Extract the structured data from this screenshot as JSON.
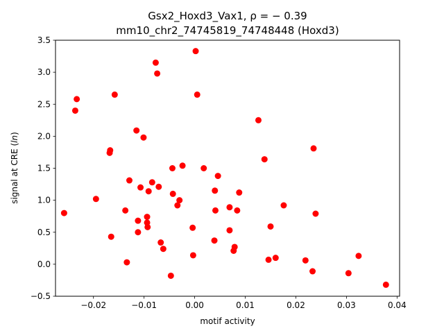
{
  "chart_data": {
    "type": "scatter",
    "title_line1": "Gsx2_Hoxd3_Vax1, ρ = − 0.39",
    "title_line2": "mm10_chr2_74745819_74748448 (Hoxd3)",
    "xlabel": "motif activity",
    "ylabel": "signal at CRE (ln)",
    "xlim": [
      -0.0275,
      0.0405
    ],
    "ylim": [
      -0.5,
      3.5
    ],
    "xticks": [
      -0.02,
      -0.01,
      0.0,
      0.01,
      0.02,
      0.03,
      0.04
    ],
    "xtick_labels": [
      "−0.02",
      "−0.01",
      "0.00",
      "0.01",
      "0.02",
      "0.03",
      "0.04"
    ],
    "yticks": [
      -0.5,
      0.0,
      0.5,
      1.0,
      1.5,
      2.0,
      2.5,
      3.0,
      3.5
    ],
    "ytick_labels": [
      "−0.5",
      "0.0",
      "0.5",
      "1.0",
      "1.5",
      "2.0",
      "2.5",
      "3.0",
      "3.5"
    ],
    "marker_color": "#ff0000",
    "grid": false,
    "points": [
      {
        "x": -0.0258,
        "y": 0.8
      },
      {
        "x": -0.0233,
        "y": 2.58
      },
      {
        "x": -0.0236,
        "y": 2.4
      },
      {
        "x": -0.0195,
        "y": 1.02
      },
      {
        "x": -0.0167,
        "y": 1.78
      },
      {
        "x": -0.0168,
        "y": 1.74
      },
      {
        "x": -0.0165,
        "y": 0.43
      },
      {
        "x": -0.0158,
        "y": 2.65
      },
      {
        "x": -0.0137,
        "y": 0.84
      },
      {
        "x": -0.0134,
        "y": 0.03
      },
      {
        "x": -0.0129,
        "y": 1.31
      },
      {
        "x": -0.0115,
        "y": 2.09
      },
      {
        "x": -0.0112,
        "y": 0.68
      },
      {
        "x": -0.0112,
        "y": 0.5
      },
      {
        "x": -0.0107,
        "y": 1.2
      },
      {
        "x": -0.0101,
        "y": 1.98
      },
      {
        "x": -0.0094,
        "y": 0.74
      },
      {
        "x": -0.0094,
        "y": 0.65
      },
      {
        "x": -0.0093,
        "y": 0.58
      },
      {
        "x": -0.0091,
        "y": 1.14
      },
      {
        "x": -0.0084,
        "y": 1.28
      },
      {
        "x": -0.0077,
        "y": 3.15
      },
      {
        "x": -0.0074,
        "y": 2.98
      },
      {
        "x": -0.0071,
        "y": 1.21
      },
      {
        "x": -0.0067,
        "y": 0.34
      },
      {
        "x": -0.0062,
        "y": 0.24
      },
      {
        "x": -0.0047,
        "y": -0.18
      },
      {
        "x": -0.0044,
        "y": 1.5
      },
      {
        "x": -0.0043,
        "y": 1.1
      },
      {
        "x": -0.0034,
        "y": 0.92
      },
      {
        "x": -0.003,
        "y": 1.0
      },
      {
        "x": -0.0024,
        "y": 1.54
      },
      {
        "x": -0.0004,
        "y": 0.57
      },
      {
        "x": -0.0003,
        "y": 0.14
      },
      {
        "x": 0.0002,
        "y": 3.33
      },
      {
        "x": 0.0005,
        "y": 2.65
      },
      {
        "x": 0.0018,
        "y": 1.5
      },
      {
        "x": 0.0039,
        "y": 0.37
      },
      {
        "x": 0.004,
        "y": 1.15
      },
      {
        "x": 0.0041,
        "y": 0.84
      },
      {
        "x": 0.0046,
        "y": 1.38
      },
      {
        "x": 0.0069,
        "y": 0.89
      },
      {
        "x": 0.0069,
        "y": 0.53
      },
      {
        "x": 0.0077,
        "y": 0.21
      },
      {
        "x": 0.0079,
        "y": 0.27
      },
      {
        "x": 0.0084,
        "y": 0.84
      },
      {
        "x": 0.0088,
        "y": 1.12
      },
      {
        "x": 0.0126,
        "y": 2.25
      },
      {
        "x": 0.0138,
        "y": 1.64
      },
      {
        "x": 0.0146,
        "y": 0.07
      },
      {
        "x": 0.015,
        "y": 0.59
      },
      {
        "x": 0.016,
        "y": 0.1
      },
      {
        "x": 0.0176,
        "y": 0.92
      },
      {
        "x": 0.0219,
        "y": 0.06
      },
      {
        "x": 0.0233,
        "y": -0.11
      },
      {
        "x": 0.0235,
        "y": 1.81
      },
      {
        "x": 0.0239,
        "y": 0.79
      },
      {
        "x": 0.0304,
        "y": -0.14
      },
      {
        "x": 0.0324,
        "y": 0.13
      },
      {
        "x": 0.0378,
        "y": -0.32
      }
    ]
  }
}
